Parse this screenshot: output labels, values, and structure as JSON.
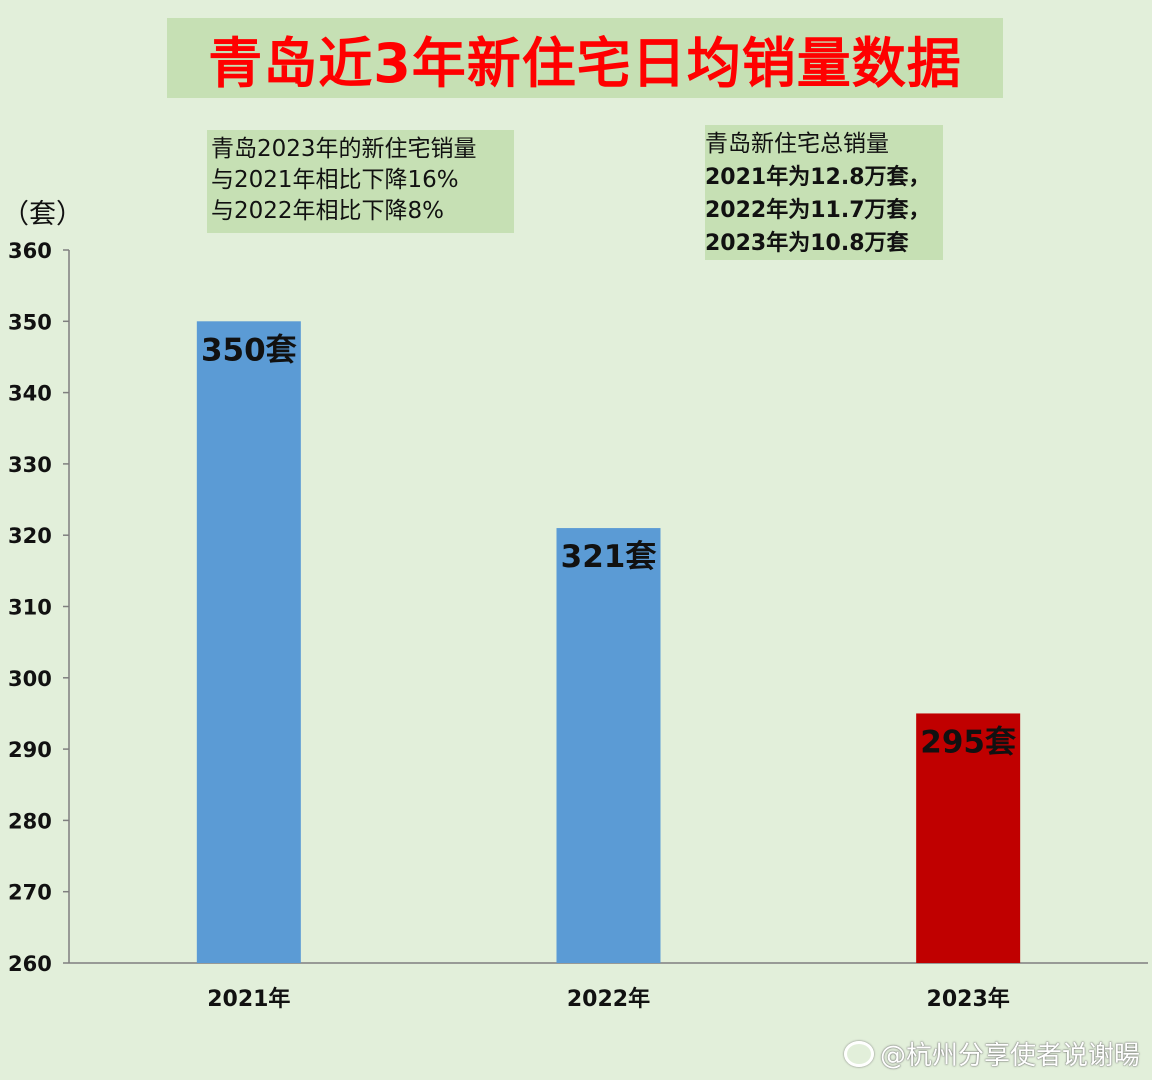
{
  "chart_data": {
    "type": "bar",
    "title": "青岛近3年新住宅日均销量数据",
    "ylabel": "（套）",
    "xlabel": "",
    "categories": [
      "2021年",
      "2022年",
      "2023年"
    ],
    "values": [
      350,
      321,
      295
    ],
    "data_labels": [
      "350套",
      "321套",
      "295套"
    ],
    "ylim": [
      260,
      360
    ],
    "yticks": [
      360,
      350,
      340,
      330,
      320,
      310,
      300,
      290,
      280,
      270,
      260
    ],
    "bar_colors": [
      "#5b9bd5",
      "#5b9bd5",
      "#c00000"
    ],
    "grid": false,
    "legend": "none"
  },
  "notes": {
    "left": [
      "青岛2023年的新住宅销量",
      "与2021年相比下降16%",
      "与2022年相比下降8%"
    ],
    "right": [
      "青岛新住宅总销量",
      "2021年为12.8万套，",
      "2022年为11.7万套，",
      "2023年为10.8万套"
    ]
  },
  "watermark": "@杭州分享使者说谢暘",
  "colors": {
    "background": "#e2efda",
    "box": "#c6e0b4",
    "title": "#ff0000",
    "bar": "#5b9bd5",
    "highlight": "#c00000"
  }
}
